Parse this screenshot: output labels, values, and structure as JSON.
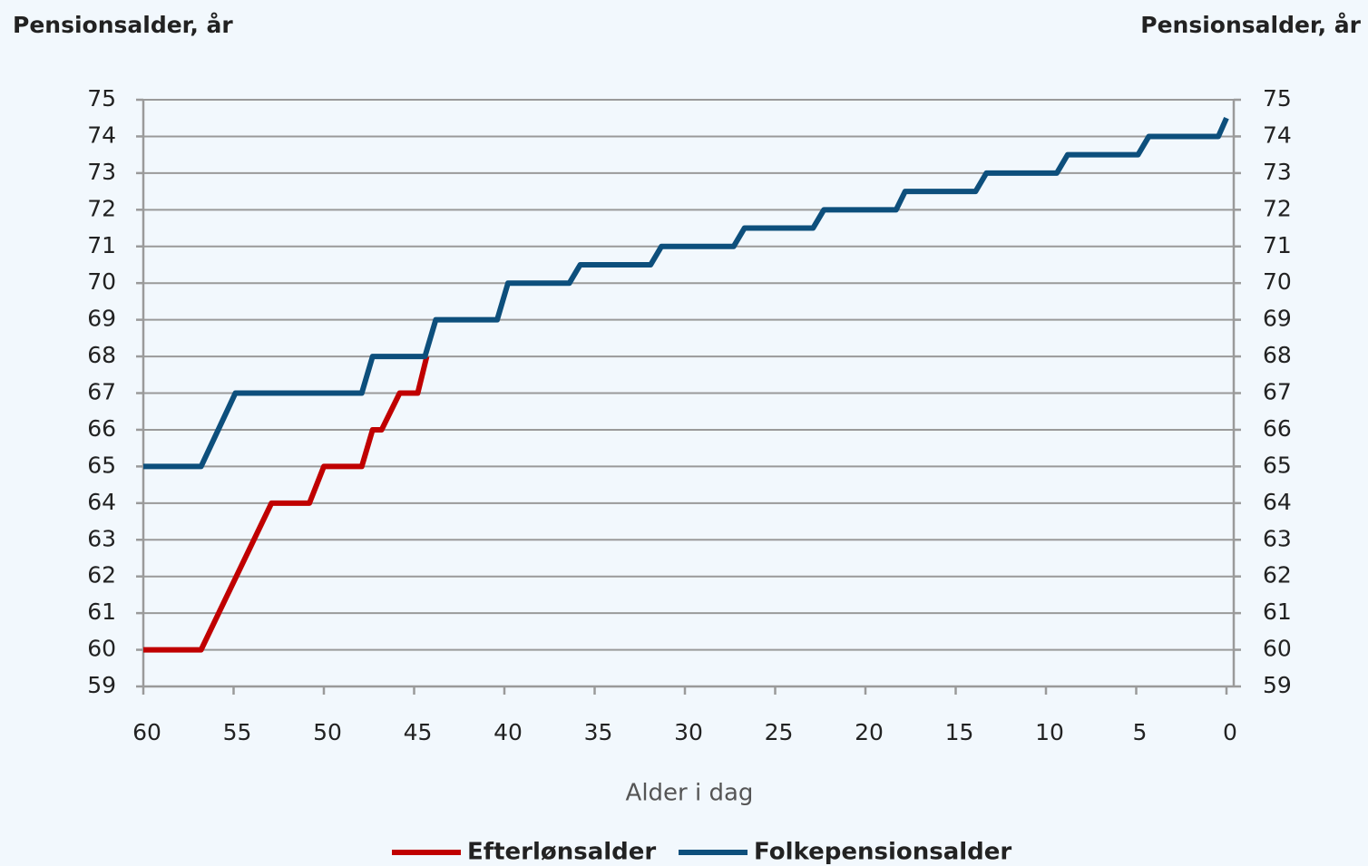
{
  "chart_data": {
    "type": "line",
    "title_left": "Pensionsalder, år",
    "title_right": "Pensionsalder, år",
    "xlabel": "Alder i dag",
    "xlim": [
      60,
      0
    ],
    "xticks": [
      60,
      55,
      50,
      45,
      40,
      35,
      30,
      25,
      20,
      15,
      10,
      5,
      0
    ],
    "ylim": [
      59,
      75
    ],
    "yticks": [
      59,
      60,
      61,
      62,
      63,
      64,
      65,
      66,
      67,
      68,
      69,
      70,
      71,
      72,
      73,
      74,
      75
    ],
    "y2lim": [
      59,
      75
    ],
    "y2ticks": [
      59,
      60,
      61,
      62,
      63,
      64,
      65,
      66,
      67,
      68,
      69,
      70,
      71,
      72,
      73,
      74,
      75
    ],
    "grid": true,
    "legend": "bottom",
    "series": [
      {
        "name": "Efterlønsalder",
        "color": "#c00000",
        "x": [
          60,
          56.8,
          52.9,
          50.8,
          50,
          47.9,
          47.3,
          46.8,
          45.8,
          44.8,
          44.3
        ],
        "values": [
          60,
          60,
          64,
          64,
          65,
          65,
          66,
          66,
          67,
          67,
          68
        ]
      },
      {
        "name": "Folkepensionsalder",
        "color": "#0d4f7c",
        "x": [
          60,
          56.8,
          54.9,
          47.9,
          47.3,
          44.4,
          43.8,
          40.4,
          39.8,
          36.4,
          35.8,
          31.9,
          31.3,
          27.3,
          26.7,
          22.9,
          22.3,
          18.3,
          17.8,
          13.9,
          13.3,
          9.4,
          8.8,
          4.9,
          4.3,
          0.45,
          0
        ],
        "values": [
          65,
          65,
          67,
          67,
          68,
          68,
          69,
          69,
          70,
          70,
          70.5,
          70.5,
          71,
          71,
          71.5,
          71.5,
          72,
          72,
          72.5,
          72.5,
          73,
          73,
          73.5,
          73.5,
          74,
          74,
          74.5
        ]
      }
    ]
  }
}
